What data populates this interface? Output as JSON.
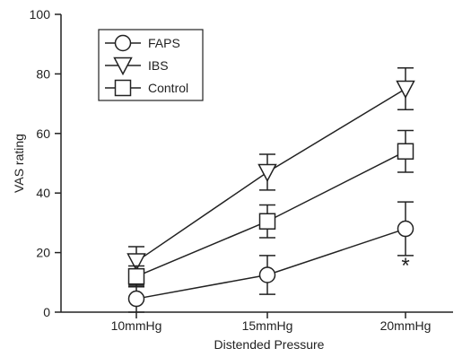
{
  "chart_data": {
    "type": "line",
    "xlabel": "Distended Pressure",
    "ylabel": "VAS rating",
    "categories": [
      "10mmHg",
      "15mmHg",
      "20mmHg"
    ],
    "ylim": [
      0,
      100
    ],
    "yticks": [
      0,
      20,
      40,
      60,
      80,
      100
    ],
    "grid": false,
    "legend_position": "top-left",
    "series": [
      {
        "name": "FAPS",
        "marker": "circle",
        "values": [
          4.5,
          12.5,
          28
        ],
        "errors": [
          4.5,
          6.5,
          9
        ]
      },
      {
        "name": "IBS",
        "marker": "triangle-down",
        "values": [
          17,
          47,
          75
        ],
        "errors": [
          5,
          6,
          7
        ]
      },
      {
        "name": "Control",
        "marker": "square",
        "values": [
          12,
          30.5,
          54
        ],
        "errors": [
          3.5,
          5.5,
          7
        ]
      }
    ],
    "annotations": [
      {
        "text": "*",
        "category": "20mmHg",
        "y": 16.5
      }
    ]
  }
}
